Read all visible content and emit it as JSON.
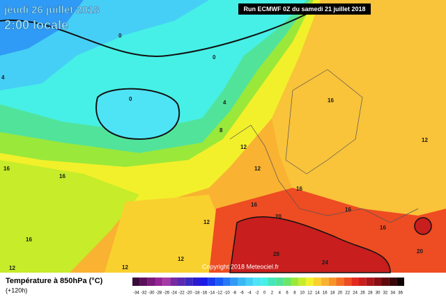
{
  "header": {
    "date": "jeudi 26 juillet 2018",
    "time": "2:00 locale",
    "run": "Run ECMWF 0Z du samedi 21 juillet 2018"
  },
  "copyright": "Copyright 2018 Meteociel.fr",
  "legend": {
    "title": "Température à 850hPa (°C)",
    "lead": "(+120h)",
    "scale": [
      {
        "label": "-34",
        "color": "#3a0a3a"
      },
      {
        "label": "-32",
        "color": "#5a0f5a"
      },
      {
        "label": "-30",
        "color": "#7a1a7a"
      },
      {
        "label": "-28",
        "color": "#962596"
      },
      {
        "label": "-26",
        "color": "#a63aa6"
      },
      {
        "label": "-24",
        "color": "#7a2aa0"
      },
      {
        "label": "-22",
        "color": "#5a2ab0"
      },
      {
        "label": "-20",
        "color": "#3a2ac0"
      },
      {
        "label": "-18",
        "color": "#2a1ad0"
      },
      {
        "label": "-16",
        "color": "#1a1ae6"
      },
      {
        "label": "-14",
        "color": "#1a3af0"
      },
      {
        "label": "-12",
        "color": "#1a5af6"
      },
      {
        "label": "-10",
        "color": "#2a7af6"
      },
      {
        "label": "-8",
        "color": "#2f9bf6"
      },
      {
        "label": "-6",
        "color": "#3ab8f6"
      },
      {
        "label": "-4",
        "color": "#46cff6"
      },
      {
        "label": "-2",
        "color": "#4fe3f6"
      },
      {
        "label": "0",
        "color": "#46f0e6"
      },
      {
        "label": "2",
        "color": "#46e6b8"
      },
      {
        "label": "4",
        "color": "#52e39b"
      },
      {
        "label": "6",
        "color": "#6ae66a"
      },
      {
        "label": "8",
        "color": "#9ae83a"
      },
      {
        "label": "10",
        "color": "#c6ec2a"
      },
      {
        "label": "12",
        "color": "#f2f02a"
      },
      {
        "label": "14",
        "color": "#f9d12e"
      },
      {
        "label": "16",
        "color": "#f9b232"
      },
      {
        "label": "18",
        "color": "#f79428"
      },
      {
        "label": "20",
        "color": "#f37024"
      },
      {
        "label": "22",
        "color": "#ee4c22"
      },
      {
        "label": "24",
        "color": "#e22a1e"
      },
      {
        "label": "26",
        "color": "#c81e1e"
      },
      {
        "label": "28",
        "color": "#a8161a"
      },
      {
        "label": "30",
        "color": "#881014"
      },
      {
        "label": "32",
        "color": "#600a0e"
      },
      {
        "label": "34",
        "color": "#3a0608"
      },
      {
        "label": "36",
        "color": "#100202"
      }
    ]
  },
  "map_labels": [
    "0",
    "0",
    "0",
    "4",
    "8",
    "12",
    "12",
    "16",
    "12",
    "16",
    "16",
    "16",
    "16",
    "16",
    "20",
    "12",
    "16",
    "16",
    "20",
    "28",
    "24",
    "12",
    "12",
    "12",
    "4"
  ]
}
